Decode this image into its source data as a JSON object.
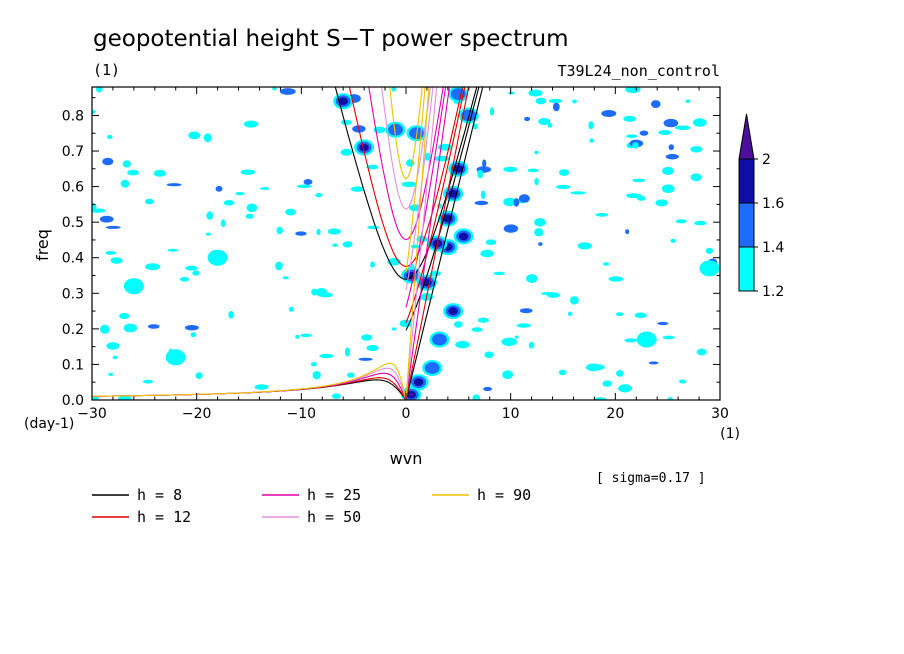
{
  "chart_data": {
    "type": "heatmap",
    "title": "geopotential height S−T power spectrum",
    "units_left": "(1)",
    "run_label": "T39L24_non_control",
    "xlabel": "wvn",
    "ylabel": "freq",
    "x_unit": "(1)",
    "y_unit": "(day-1)",
    "note": "[ sigma=0.17 ]",
    "xlim": [
      -30,
      30
    ],
    "ylim": [
      0,
      0.88
    ],
    "x_ticks": [
      -30,
      -20,
      -10,
      0,
      10,
      20,
      30
    ],
    "x_tick_labels": [
      "−30",
      "−20",
      "−10",
      "0",
      "10",
      "20",
      "30"
    ],
    "y_ticks": [
      0,
      0.1,
      0.2,
      0.3,
      0.4,
      0.5,
      0.6,
      0.7,
      0.8
    ],
    "y_tick_labels": [
      "0.0",
      "0.1",
      "0.2",
      "0.3",
      "0.4",
      "0.5",
      "0.6",
      "0.7",
      "0.8"
    ],
    "colorbar": {
      "levels": [
        1.2,
        1.4,
        1.6,
        2
      ],
      "labels": [
        "1.2",
        "1.4",
        "1.6",
        "2"
      ],
      "colors": [
        "#00ffff",
        "#1e6cff",
        "#0f0fa8",
        "#4b0f9c"
      ]
    },
    "dispersion_curves": [
      {
        "name": "h =  8",
        "h": 8,
        "color": "#000000"
      },
      {
        "name": "h = 12",
        "h": 12,
        "color": "#e00000"
      },
      {
        "name": "h = 25",
        "h": 25,
        "color": "#e000b0"
      },
      {
        "name": "h = 50",
        "h": 50,
        "color": "#e090e0"
      },
      {
        "name": "h = 90",
        "h": 90,
        "color": "#f0c000"
      }
    ],
    "spectral_peaks": [
      {
        "k": 0.5,
        "f": 0.015,
        "level": 2.0
      },
      {
        "k": 1.2,
        "f": 0.05,
        "level": 1.6
      },
      {
        "k": 2.5,
        "f": 0.09,
        "level": 1.4
      },
      {
        "k": 3.2,
        "f": 0.17,
        "level": 1.4
      },
      {
        "k": 4.5,
        "f": 0.25,
        "level": 1.6
      },
      {
        "k": 2.0,
        "f": 0.33,
        "level": 1.6
      },
      {
        "k": 0.5,
        "f": 0.35,
        "level": 1.6
      },
      {
        "k": 4.0,
        "f": 0.43,
        "level": 1.6
      },
      {
        "k": 3.0,
        "f": 0.44,
        "level": 2.0
      },
      {
        "k": 5.5,
        "f": 0.46,
        "level": 1.6
      },
      {
        "k": 4.0,
        "f": 0.51,
        "level": 1.6
      },
      {
        "k": 4.5,
        "f": 0.58,
        "level": 1.6
      },
      {
        "k": 5.0,
        "f": 0.65,
        "level": 1.6
      },
      {
        "k": -4.0,
        "f": 0.71,
        "level": 1.6
      },
      {
        "k": -1.0,
        "f": 0.76,
        "level": 1.4
      },
      {
        "k": 1.0,
        "f": 0.75,
        "level": 1.4
      },
      {
        "k": 6.0,
        "f": 0.8,
        "level": 1.4
      },
      {
        "k": -6.0,
        "f": 0.84,
        "level": 1.6
      },
      {
        "k": 5.0,
        "f": 0.86,
        "level": 1.4
      },
      {
        "k": -18.0,
        "f": 0.4,
        "level": 1.2
      },
      {
        "k": -22.0,
        "f": 0.12,
        "level": 1.2
      },
      {
        "k": 23.0,
        "f": 0.17,
        "level": 1.2
      },
      {
        "k": 29.0,
        "f": 0.37,
        "level": 1.2
      },
      {
        "k": -26.0,
        "f": 0.32,
        "level": 1.2
      }
    ]
  }
}
